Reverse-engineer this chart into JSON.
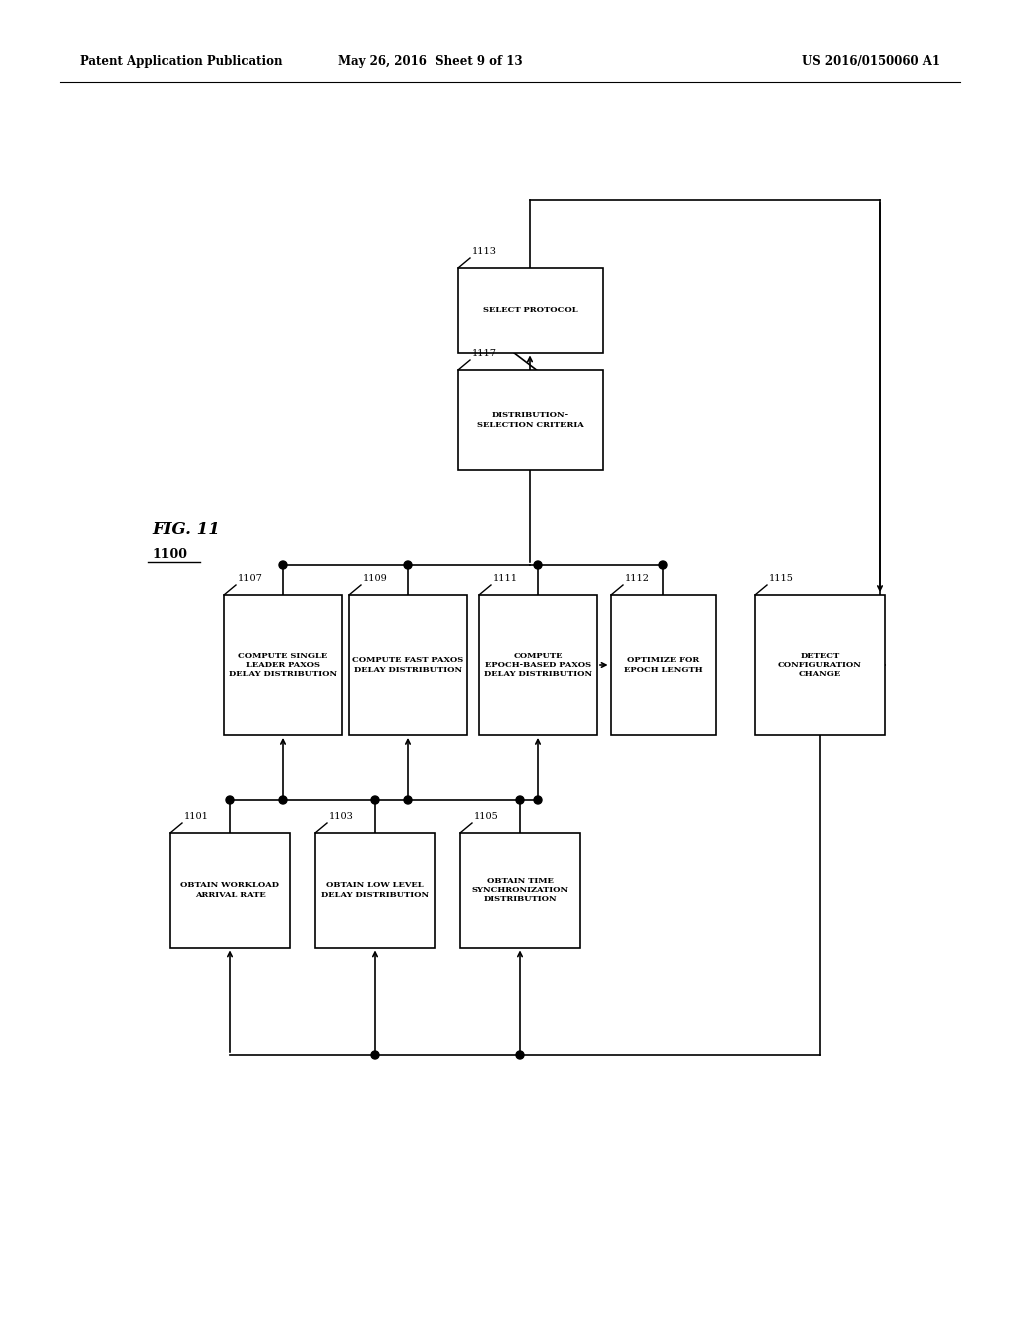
{
  "header_left": "Patent Application Publication",
  "header_mid": "May 26, 2016  Sheet 9 of 13",
  "header_right": "US 2016/0150060 A1",
  "fig_label": "FIG. 11",
  "fig_number": "1100",
  "background_color": "#ffffff",
  "line_color": "#000000",
  "box_edge_color": "#000000",
  "box_face_color": "#ffffff",
  "font_size_box": 6.0,
  "font_size_header": 8.5,
  "font_size_fig": 12,
  "font_size_ref": 7.0
}
